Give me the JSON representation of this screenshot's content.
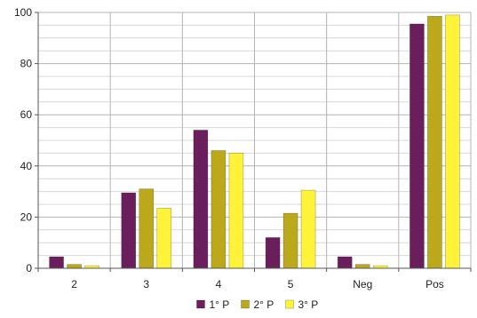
{
  "chart_data": {
    "type": "bar",
    "categories": [
      "2",
      "3",
      "4",
      "5",
      "Neg",
      "Pos"
    ],
    "series": [
      {
        "name": "1° P",
        "color": "#6B1E5C",
        "values": [
          4.5,
          29.5,
          54,
          12,
          4.5,
          95.5
        ]
      },
      {
        "name": "2° P",
        "color": "#BBA81B",
        "values": [
          1.5,
          31,
          46,
          21.5,
          1.5,
          98.5
        ]
      },
      {
        "name": "3° P",
        "color": "#FFF33A",
        "values": [
          1,
          23.5,
          45,
          30.5,
          1,
          99
        ]
      }
    ],
    "ylim": [
      0,
      100
    ],
    "yticks": [
      0,
      20,
      40,
      60,
      80,
      100
    ],
    "y_minor_step": 5,
    "grid": true,
    "legend_position": "bottom"
  }
}
